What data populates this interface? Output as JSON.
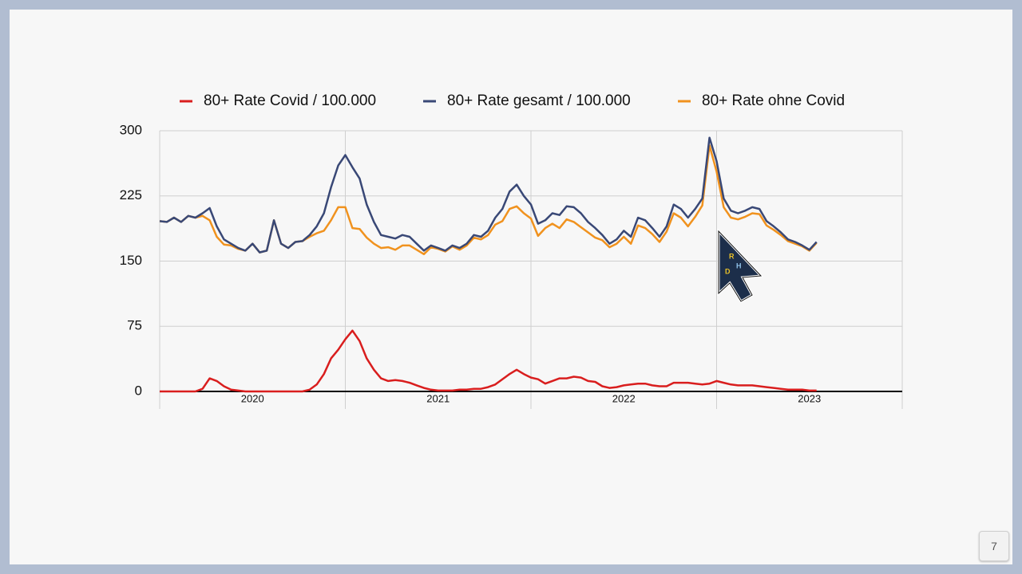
{
  "chart_data": {
    "type": "line",
    "categories": [
      null,
      null,
      null,
      null,
      null,
      null,
      null,
      null,
      null,
      null,
      null,
      null,
      null,
      "2020",
      null,
      null,
      null,
      null,
      null,
      null,
      null,
      null,
      null,
      null,
      null,
      null,
      null,
      null,
      null,
      null,
      null,
      null,
      null,
      null,
      null,
      null,
      null,
      null,
      null,
      "2021",
      null,
      null,
      null,
      null,
      null,
      null,
      null,
      null,
      null,
      null,
      null,
      null,
      null,
      null,
      null,
      null,
      null,
      null,
      null,
      null,
      null,
      null,
      null,
      null,
      null,
      "2022",
      null,
      null,
      null,
      null,
      null,
      null,
      null,
      null,
      null,
      null,
      null,
      null,
      null,
      null,
      null,
      null,
      null,
      null,
      null,
      null,
      null,
      null,
      null,
      null,
      null,
      "2023",
      null,
      null,
      null,
      null,
      null,
      null,
      null,
      null,
      null,
      null,
      null,
      null
    ],
    "series": [
      {
        "name": "80+ Rate Covid / 100.000",
        "color": "#d91e1e",
        "values": [
          0,
          0,
          0,
          0,
          0,
          0,
          3,
          15,
          12,
          6,
          2,
          1,
          0,
          0,
          0,
          0,
          0,
          0,
          0,
          0,
          0,
          2,
          8,
          20,
          38,
          48,
          60,
          70,
          58,
          38,
          25,
          15,
          12,
          13,
          12,
          10,
          7,
          4,
          2,
          1,
          1,
          1,
          2,
          2,
          3,
          3,
          5,
          8,
          14,
          20,
          25,
          20,
          16,
          14,
          9,
          12,
          15,
          15,
          17,
          16,
          12,
          11,
          6,
          4,
          5,
          7,
          8,
          9,
          9,
          7,
          6,
          6,
          10,
          10,
          10,
          9,
          8,
          9,
          12,
          10,
          8,
          7,
          7,
          7,
          6,
          5,
          4,
          3,
          2,
          2,
          2,
          1,
          1,
          null,
          null,
          null,
          null,
          null,
          null,
          null,
          null,
          null,
          null,
          null
        ]
      },
      {
        "name": "80+ Rate gesamt / 100.000",
        "color": "#394876",
        "values": [
          196,
          195,
          200,
          195,
          202,
          200,
          205,
          211,
          190,
          175,
          170,
          165,
          162,
          170,
          160,
          162,
          197,
          170,
          165,
          172,
          173,
          180,
          190,
          205,
          235,
          260,
          272,
          258,
          245,
          215,
          195,
          180,
          178,
          176,
          180,
          178,
          170,
          162,
          168,
          165,
          162,
          168,
          165,
          170,
          180,
          178,
          185,
          200,
          210,
          230,
          238,
          225,
          215,
          193,
          197,
          205,
          203,
          213,
          212,
          205,
          195,
          188,
          180,
          170,
          175,
          185,
          178,
          200,
          197,
          188,
          178,
          190,
          215,
          210,
          200,
          210,
          222,
          292,
          265,
          222,
          208,
          205,
          208,
          212,
          210,
          196,
          190,
          183,
          175,
          172,
          168,
          163,
          172,
          null,
          null,
          null,
          null,
          null,
          null,
          null,
          null,
          null,
          null,
          null
        ]
      },
      {
        "name": "80+ Rate ohne Covid",
        "color": "#f0921e",
        "values": [
          196,
          195,
          200,
          195,
          202,
          200,
          202,
          197,
          178,
          169,
          168,
          164,
          162,
          170,
          160,
          162,
          197,
          170,
          165,
          172,
          173,
          178,
          182,
          185,
          197,
          212,
          212,
          188,
          187,
          177,
          170,
          165,
          166,
          163,
          168,
          168,
          163,
          158,
          166,
          164,
          161,
          167,
          163,
          168,
          177,
          175,
          180,
          192,
          196,
          210,
          213,
          205,
          199,
          179,
          188,
          193,
          188,
          198,
          195,
          189,
          183,
          177,
          174,
          166,
          170,
          178,
          170,
          191,
          188,
          181,
          172,
          184,
          205,
          200,
          190,
          201,
          214,
          283,
          253,
          212,
          200,
          198,
          201,
          205,
          204,
          191,
          186,
          180,
          173,
          170,
          167,
          162,
          171,
          null,
          null,
          null,
          null,
          null,
          null,
          null,
          null,
          null,
          null,
          null
        ]
      }
    ],
    "ylim": [
      0,
      300
    ],
    "yticks": [
      0,
      75,
      150,
      225,
      300
    ],
    "grid": true,
    "legend": "top"
  },
  "cursor_letters": [
    "R",
    "D",
    "H"
  ],
  "page_number": 7
}
